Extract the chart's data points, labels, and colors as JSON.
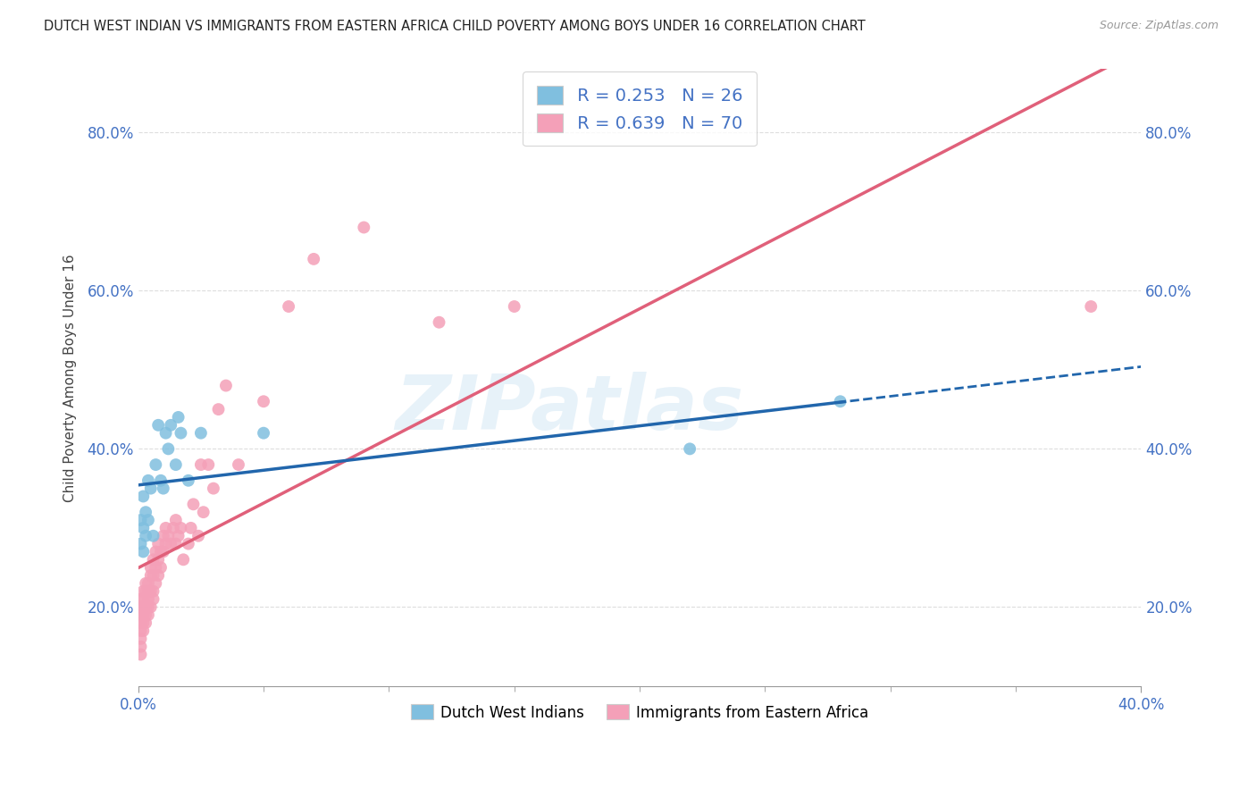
{
  "title": "DUTCH WEST INDIAN VS IMMIGRANTS FROM EASTERN AFRICA CHILD POVERTY AMONG BOYS UNDER 16 CORRELATION CHART",
  "source": "Source: ZipAtlas.com",
  "ylabel": "Child Poverty Among Boys Under 16",
  "xlim": [
    0.0,
    0.4
  ],
  "ylim": [
    0.1,
    0.88
  ],
  "ytick_vals": [
    0.2,
    0.4,
    0.6,
    0.8
  ],
  "xtick_vals": [
    0.0,
    0.05,
    0.1,
    0.15,
    0.2,
    0.25,
    0.3,
    0.35,
    0.4
  ],
  "xtick_labels": [
    "",
    "",
    "",
    "",
    "",
    "",
    "",
    "",
    ""
  ],
  "ytick_labels": [
    "20.0%",
    "40.0%",
    "60.0%",
    "80.0%"
  ],
  "xlabel_labels": [
    "0.0%",
    "40.0%"
  ],
  "blue_color": "#80bfdf",
  "pink_color": "#f4a0b8",
  "blue_line_color": "#2166ac",
  "pink_line_color": "#e0607a",
  "blue_R": 0.253,
  "blue_N": 26,
  "pink_R": 0.639,
  "pink_N": 70,
  "watermark": "ZIPatlas",
  "legend_label_blue": "Dutch West Indians",
  "legend_label_pink": "Immigrants from Eastern Africa",
  "blue_x": [
    0.001,
    0.001,
    0.002,
    0.002,
    0.002,
    0.003,
    0.003,
    0.004,
    0.004,
    0.005,
    0.006,
    0.007,
    0.008,
    0.009,
    0.01,
    0.011,
    0.012,
    0.013,
    0.015,
    0.016,
    0.017,
    0.02,
    0.025,
    0.05,
    0.22,
    0.28
  ],
  "blue_y": [
    0.28,
    0.31,
    0.27,
    0.3,
    0.34,
    0.29,
    0.32,
    0.36,
    0.31,
    0.35,
    0.29,
    0.38,
    0.43,
    0.36,
    0.35,
    0.42,
    0.4,
    0.43,
    0.38,
    0.44,
    0.42,
    0.36,
    0.42,
    0.42,
    0.4,
    0.46
  ],
  "pink_x": [
    0.001,
    0.001,
    0.001,
    0.001,
    0.001,
    0.001,
    0.001,
    0.001,
    0.002,
    0.002,
    0.002,
    0.002,
    0.002,
    0.002,
    0.003,
    0.003,
    0.003,
    0.003,
    0.003,
    0.004,
    0.004,
    0.004,
    0.004,
    0.004,
    0.005,
    0.005,
    0.005,
    0.005,
    0.006,
    0.006,
    0.006,
    0.006,
    0.007,
    0.007,
    0.007,
    0.008,
    0.008,
    0.008,
    0.009,
    0.009,
    0.01,
    0.01,
    0.011,
    0.011,
    0.012,
    0.013,
    0.014,
    0.015,
    0.015,
    0.016,
    0.017,
    0.018,
    0.02,
    0.021,
    0.022,
    0.024,
    0.025,
    0.026,
    0.028,
    0.03,
    0.032,
    0.035,
    0.04,
    0.05,
    0.06,
    0.07,
    0.09,
    0.12,
    0.15,
    0.38
  ],
  "pink_y": [
    0.18,
    0.19,
    0.17,
    0.15,
    0.2,
    0.16,
    0.14,
    0.21,
    0.18,
    0.22,
    0.17,
    0.19,
    0.2,
    0.21,
    0.2,
    0.19,
    0.22,
    0.18,
    0.23,
    0.2,
    0.22,
    0.19,
    0.21,
    0.23,
    0.22,
    0.24,
    0.2,
    0.25,
    0.22,
    0.21,
    0.24,
    0.26,
    0.23,
    0.25,
    0.27,
    0.24,
    0.26,
    0.28,
    0.25,
    0.27,
    0.27,
    0.29,
    0.28,
    0.3,
    0.29,
    0.28,
    0.3,
    0.28,
    0.31,
    0.29,
    0.3,
    0.26,
    0.28,
    0.3,
    0.33,
    0.29,
    0.38,
    0.32,
    0.38,
    0.35,
    0.45,
    0.48,
    0.38,
    0.46,
    0.58,
    0.64,
    0.68,
    0.56,
    0.58,
    0.58
  ]
}
